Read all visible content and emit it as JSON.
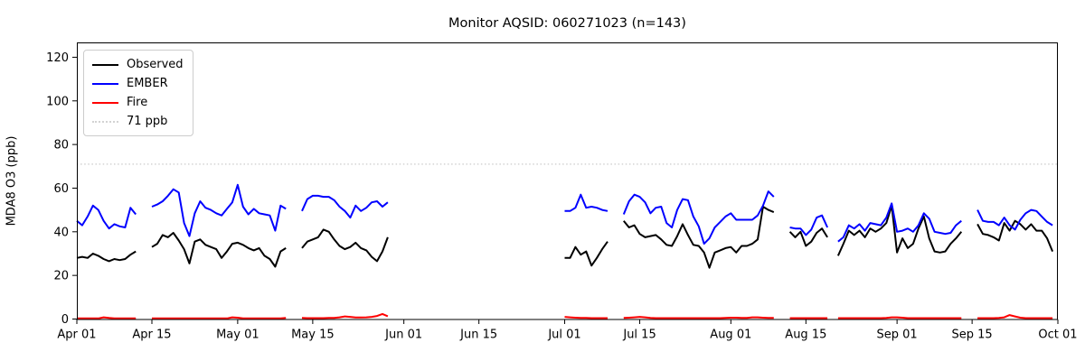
{
  "title": "Monitor AQSID: 060271023 (n=143)",
  "axes": {
    "ylabel": "MDA8 O3 (ppb)",
    "xlabel": ""
  },
  "legend": {
    "items": [
      {
        "label": "Observed",
        "color": "#000000",
        "style": "solid"
      },
      {
        "label": "EMBER",
        "color": "#0000ff",
        "style": "solid"
      },
      {
        "label": "Fire",
        "color": "#ff0000",
        "style": "solid"
      },
      {
        "label": "71 ppb",
        "color": "#d3d3d3",
        "style": "dotted"
      }
    ],
    "position": "upper left"
  },
  "chart_data": {
    "type": "line",
    "title": "Monitor AQSID: 060271023 (n=143)",
    "xlabel": "",
    "ylabel": "MDA8 O3 (ppb)",
    "grid": false,
    "background": "#ffffff",
    "spine_color": "#000000",
    "x_unit": "days since Apr 01",
    "xlim_days": [
      0,
      183
    ],
    "ylim": [
      0,
      126.8
    ],
    "yticks": [
      0,
      20,
      40,
      60,
      80,
      100,
      120
    ],
    "xticks": [
      {
        "day": 0,
        "label": "Apr 01"
      },
      {
        "day": 14,
        "label": "Apr 15"
      },
      {
        "day": 30,
        "label": "May 01"
      },
      {
        "day": 44,
        "label": "May 15"
      },
      {
        "day": 61,
        "label": "Jun 01"
      },
      {
        "day": 75,
        "label": "Jun 15"
      },
      {
        "day": 91,
        "label": "Jul 01"
      },
      {
        "day": 105,
        "label": "Jul 15"
      },
      {
        "day": 122,
        "label": "Aug 01"
      },
      {
        "day": 136,
        "label": "Aug 15"
      },
      {
        "day": 153,
        "label": "Sep 01"
      },
      {
        "day": 167,
        "label": "Sep 15"
      },
      {
        "day": 183,
        "label": "Oct 01"
      }
    ],
    "threshold": {
      "value": 71,
      "label": "71 ppb",
      "color": "#d3d3d3",
      "style": "dotted"
    },
    "series": [
      {
        "name": "Observed",
        "color": "#000000",
        "values": [
          28,
          28.5,
          28,
          30,
          29,
          27.5,
          26.5,
          27.5,
          27,
          27.5,
          29.5,
          31,
          null,
          null,
          33,
          34.5,
          38.5,
          37.5,
          39.5,
          36,
          32,
          25.5,
          35.5,
          36.5,
          34,
          33,
          32,
          28,
          31,
          34.5,
          35,
          34,
          32.5,
          31.5,
          32.5,
          29,
          27.5,
          24,
          31,
          32.5,
          null,
          null,
          32.5,
          35.5,
          36.5,
          37.5,
          41,
          40,
          36.5,
          33.5,
          32,
          33,
          35,
          32.5,
          31.5,
          28.5,
          26.5,
          31,
          37.5,
          null,
          null,
          null,
          null,
          null,
          null,
          null,
          null,
          null,
          null,
          null,
          null,
          null,
          null,
          null,
          null,
          null,
          null,
          null,
          null,
          null,
          null,
          null,
          null,
          null,
          null,
          null,
          null,
          null,
          null,
          null,
          null,
          28,
          28,
          33,
          29.5,
          31,
          24.5,
          28,
          32,
          35.5,
          null,
          null,
          45,
          42,
          43,
          39,
          37.5,
          38,
          38.5,
          36.5,
          34,
          33.5,
          38,
          43.5,
          38.5,
          34,
          33.5,
          30.5,
          23.5,
          30.5,
          31.5,
          32.5,
          33,
          30.5,
          33.5,
          33.5,
          34.5,
          36.5,
          51.5,
          50,
          49,
          null,
          null,
          40,
          37.5,
          40,
          33.5,
          35.5,
          39.5,
          41.5,
          37.5,
          null,
          29,
          34.5,
          40.5,
          38.5,
          40.5,
          37.5,
          41.5,
          40,
          41.5,
          44,
          52,
          30.5,
          37,
          32.5,
          34.5,
          41.5,
          47,
          37,
          31,
          30.5,
          31,
          34.5,
          37,
          40,
          null,
          null,
          43.5,
          39,
          38.5,
          37.5,
          36,
          44,
          40.5,
          45,
          43.5,
          41,
          43.5,
          40.5,
          40.5,
          37,
          31
        ]
      },
      {
        "name": "EMBER",
        "color": "#0000ff",
        "values": [
          45,
          43,
          47,
          52,
          50,
          45,
          41.5,
          43.5,
          42.5,
          42,
          51,
          48,
          null,
          null,
          51.5,
          52.5,
          54,
          56.5,
          59.5,
          58,
          44,
          38,
          48.5,
          54,
          51,
          50,
          48.5,
          47.5,
          50.5,
          53.5,
          61.5,
          51.5,
          48,
          50.5,
          48.5,
          48,
          47.5,
          40.5,
          52,
          50.5,
          null,
          null,
          49.5,
          55,
          56.5,
          56.5,
          56,
          56,
          54.5,
          51.5,
          49.5,
          46.5,
          52,
          49.5,
          51,
          53.5,
          54,
          51.5,
          53.5,
          null,
          null,
          null,
          null,
          null,
          null,
          null,
          null,
          null,
          null,
          null,
          null,
          null,
          null,
          null,
          null,
          null,
          null,
          null,
          null,
          null,
          null,
          null,
          null,
          null,
          null,
          null,
          null,
          null,
          null,
          null,
          null,
          49.5,
          49.5,
          51,
          57,
          51,
          51.5,
          51,
          50,
          49.5,
          null,
          null,
          48,
          54,
          57,
          56,
          53.5,
          48.5,
          51,
          51.5,
          44,
          42,
          50,
          55,
          54.5,
          47,
          42.5,
          34.5,
          37,
          42,
          44.5,
          47,
          48.5,
          45.5,
          45.5,
          45.5,
          45.5,
          47.5,
          52,
          58.5,
          56,
          null,
          null,
          42,
          41.5,
          41.5,
          38.5,
          41,
          46.5,
          47.5,
          42,
          null,
          35.5,
          37.5,
          43,
          41.5,
          43.5,
          40.5,
          44,
          43.5,
          43,
          46.5,
          53,
          40,
          40.5,
          41.5,
          40,
          43,
          48.5,
          46,
          40,
          39.5,
          39,
          39.5,
          43,
          45,
          null,
          null,
          50,
          45,
          44.5,
          44.5,
          43,
          46.5,
          43,
          41,
          45.5,
          48.5,
          50,
          49.5,
          47,
          44.5,
          43
        ]
      },
      {
        "name": "Fire",
        "color": "#ff0000",
        "values": [
          0.3,
          0.3,
          0.3,
          0.3,
          0.3,
          0.8,
          0.5,
          0.3,
          0.3,
          0.3,
          0.3,
          0.3,
          null,
          null,
          0.3,
          0.3,
          0.3,
          0.3,
          0.3,
          0.3,
          0.3,
          0.3,
          0.3,
          0.3,
          0.3,
          0.3,
          0.3,
          0.3,
          0.3,
          0.8,
          0.6,
          0.3,
          0.3,
          0.3,
          0.3,
          0.3,
          0.3,
          0.3,
          0.3,
          0.5,
          null,
          null,
          0.5,
          0.4,
          0.4,
          0.4,
          0.4,
          0.5,
          0.5,
          0.8,
          1.2,
          1.0,
          0.7,
          0.7,
          0.8,
          1.0,
          1.4,
          2.3,
          1.3,
          null,
          null,
          null,
          null,
          null,
          null,
          null,
          null,
          null,
          null,
          null,
          null,
          null,
          null,
          null,
          null,
          null,
          null,
          null,
          null,
          null,
          null,
          null,
          null,
          null,
          null,
          null,
          null,
          null,
          null,
          null,
          null,
          1.0,
          0.8,
          0.6,
          0.5,
          0.5,
          0.4,
          0.4,
          0.4,
          0.4,
          null,
          null,
          0.5,
          0.6,
          0.8,
          1.0,
          0.8,
          0.5,
          0.4,
          0.4,
          0.4,
          0.4,
          0.4,
          0.4,
          0.4,
          0.4,
          0.4,
          0.4,
          0.4,
          0.4,
          0.4,
          0.5,
          0.6,
          0.6,
          0.5,
          0.5,
          0.8,
          0.8,
          0.6,
          0.5,
          0.5,
          null,
          null,
          0.4,
          0.4,
          0.4,
          0.4,
          0.4,
          0.4,
          0.4,
          0.4,
          null,
          0.4,
          0.4,
          0.4,
          0.4,
          0.4,
          0.4,
          0.4,
          0.4,
          0.4,
          0.5,
          0.8,
          0.8,
          0.6,
          0.4,
          0.4,
          0.4,
          0.4,
          0.4,
          0.4,
          0.4,
          0.4,
          0.4,
          0.4,
          0.4,
          null,
          null,
          0.4,
          0.4,
          0.4,
          0.4,
          0.5,
          0.8,
          1.8,
          1.2,
          0.6,
          0.4,
          0.4,
          0.4,
          0.4,
          0.4,
          0.4
        ]
      }
    ],
    "legend_position": "upper left"
  }
}
